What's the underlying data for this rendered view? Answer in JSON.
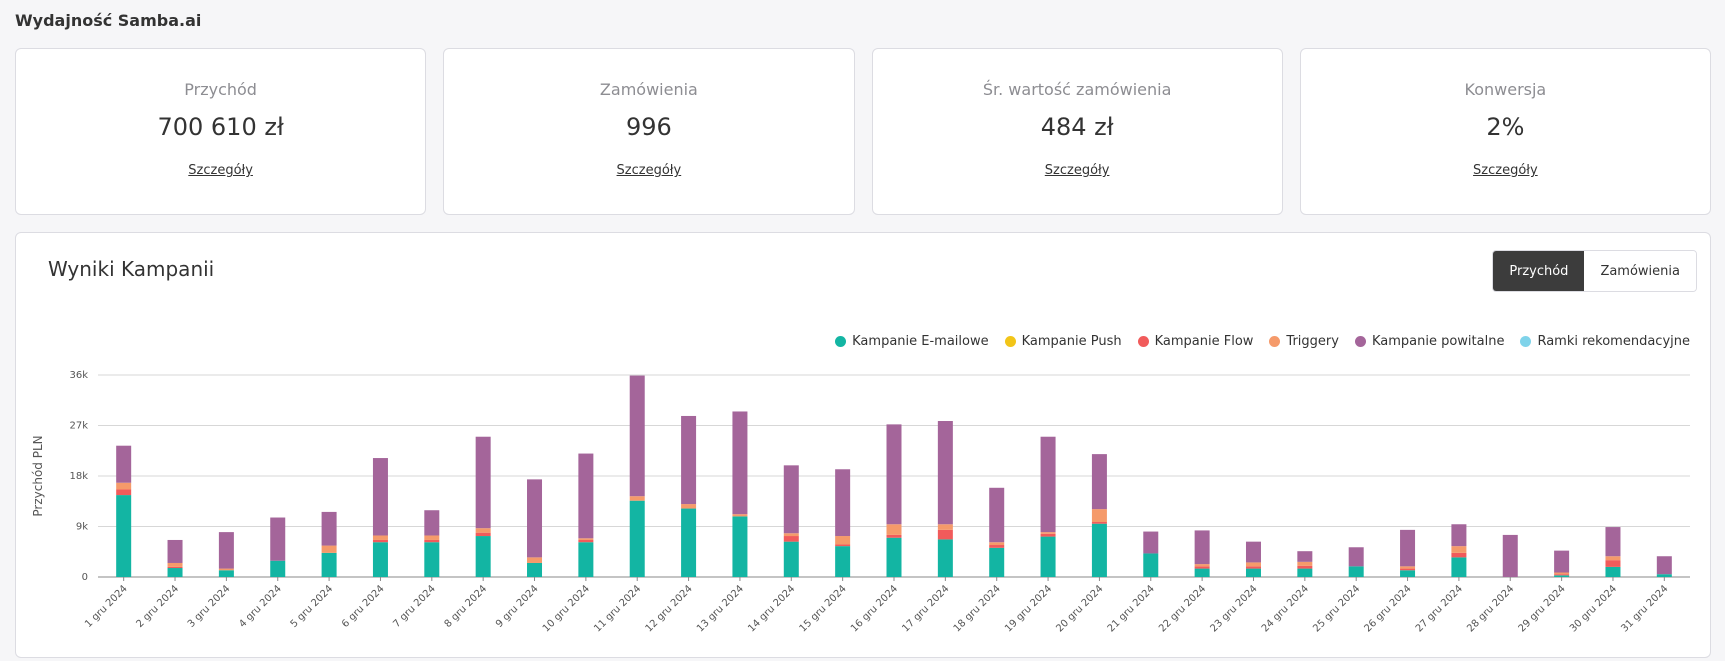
{
  "page_title": "Wydajność Samba.ai",
  "kpis": [
    {
      "label": "Przychód",
      "value": "700 610 zł",
      "link": "Szczegóły"
    },
    {
      "label": "Zamówienia",
      "value": "996",
      "link": "Szczegóły"
    },
    {
      "label": "Śr. wartość zamówienia",
      "value": "484 zł",
      "link": "Szczegóły"
    },
    {
      "label": "Konwersja",
      "value": "2%",
      "link": "Szczegóły"
    }
  ],
  "panel": {
    "title": "Wyniki Kampanii",
    "toggle": {
      "active": "Przychód",
      "other": "Zamówienia"
    }
  },
  "colors": {
    "email": "#13b5a3",
    "push": "#f2c518",
    "flow": "#f15b5b",
    "triggers": "#f59a6a",
    "popup": "#a4659a",
    "recommendations": "#7fd3ea"
  },
  "chart_data": {
    "type": "bar",
    "stacked": true,
    "ylabel": "Przychód PLN",
    "ylim": [
      0,
      36000
    ],
    "yticks": [
      "0",
      "9k",
      "18k",
      "27k",
      "36k"
    ],
    "grid": true,
    "legend_position": "top-right",
    "categories": [
      "1 gru 2024",
      "2 gru 2024",
      "3 gru 2024",
      "4 gru 2024",
      "5 gru 2024",
      "6 gru 2024",
      "7 gru 2024",
      "8 gru 2024",
      "9 gru 2024",
      "10 gru 2024",
      "11 gru 2024",
      "12 gru 2024",
      "13 gru 2024",
      "14 gru 2024",
      "15 gru 2024",
      "16 gru 2024",
      "17 gru 2024",
      "18 gru 2024",
      "19 gru 2024",
      "20 gru 2024",
      "21 gru 2024",
      "22 gru 2024",
      "23 gru 2024",
      "24 gru 2024",
      "25 gru 2024",
      "26 gru 2024",
      "27 gru 2024",
      "28 gru 2024",
      "29 gru 2024",
      "30 gru 2024",
      "31 gru 2024"
    ],
    "series": [
      {
        "name": "Kampanie E-mailowe",
        "color_key": "email",
        "values": [
          14600,
          1600,
          1200,
          2900,
          4300,
          6200,
          6200,
          7300,
          2500,
          6200,
          13600,
          12200,
          10800,
          6300,
          5500,
          7000,
          6700,
          5200,
          7200,
          9500,
          4200,
          1500,
          1500,
          1500,
          1900,
          1200,
          3500,
          0,
          300,
          1800,
          500
        ]
      },
      {
        "name": "Kampanie Push",
        "color_key": "push",
        "values": [
          0,
          0,
          0,
          0,
          0,
          0,
          0,
          0,
          0,
          0,
          0,
          0,
          0,
          0,
          0,
          0,
          0,
          0,
          0,
          0,
          0,
          0,
          0,
          0,
          0,
          0,
          0,
          0,
          0,
          0,
          0
        ]
      },
      {
        "name": "Kampanie Flow",
        "color_key": "flow",
        "values": [
          1000,
          200,
          0,
          0,
          0,
          400,
          400,
          600,
          0,
          400,
          0,
          0,
          0,
          1000,
          300,
          500,
          1700,
          500,
          500,
          300,
          0,
          400,
          400,
          500,
          0,
          300,
          800,
          0,
          200,
          1200,
          0
        ]
      },
      {
        "name": "Triggery",
        "color_key": "triggers",
        "values": [
          1200,
          700,
          300,
          0,
          1300,
          800,
          800,
          800,
          1000,
          300,
          800,
          800,
          400,
          500,
          1500,
          1900,
          1000,
          500,
          300,
          2300,
          0,
          400,
          700,
          700,
          0,
          400,
          1200,
          0,
          300,
          700,
          0
        ]
      },
      {
        "name": "Kampanie powitalne",
        "color_key": "popup",
        "values": [
          6600,
          4100,
          6500,
          7700,
          6000,
          13800,
          4500,
          16300,
          13900,
          15100,
          21500,
          15700,
          18300,
          12100,
          11900,
          17800,
          18400,
          9700,
          17000,
          9800,
          3900,
          6000,
          3700,
          1900,
          3400,
          6500,
          3900,
          7500,
          3900,
          5200,
          3200
        ]
      },
      {
        "name": "Ramki rekomendacyjne",
        "color_key": "recommendations",
        "values": [
          0,
          0,
          0,
          0,
          0,
          0,
          0,
          0,
          0,
          0,
          0,
          0,
          0,
          0,
          0,
          0,
          0,
          0,
          0,
          0,
          0,
          0,
          0,
          0,
          0,
          0,
          0,
          0,
          0,
          0,
          0
        ]
      }
    ]
  }
}
